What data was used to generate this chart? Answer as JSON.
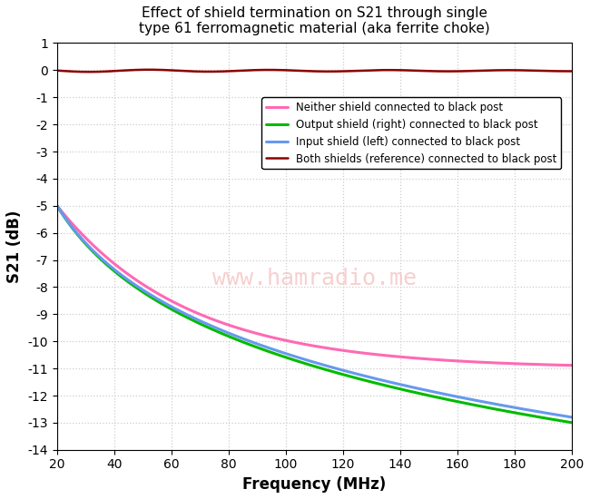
{
  "title": "Effect of shield termination on S21 through single\ntype 61 ferromagnetic material (aka ferrite choke)",
  "xlabel": "Frequency (MHz)",
  "ylabel": "S21 (dB)",
  "xlim": [
    20,
    200
  ],
  "ylim": [
    -14,
    1
  ],
  "yticks": [
    1,
    0,
    -1,
    -2,
    -3,
    -4,
    -5,
    -6,
    -7,
    -8,
    -9,
    -10,
    -11,
    -12,
    -13,
    -14
  ],
  "xticks": [
    20,
    40,
    60,
    80,
    100,
    120,
    140,
    160,
    180,
    200
  ],
  "grid_color": "#cccccc",
  "background_color": "#ffffff",
  "watermark": "www.hamradio.me",
  "watermark_color": "#f5c0c0",
  "lines": [
    {
      "label": "Neither shield connected to black post",
      "color": "#ff69b4",
      "linewidth": 2.2,
      "curve_type": "neither"
    },
    {
      "label": "Output shield (right) connected to black post",
      "color": "#00bb00",
      "linewidth": 2.2,
      "curve_type": "output"
    },
    {
      "label": "Input shield (left) connected to black post",
      "color": "#6699ee",
      "linewidth": 2.2,
      "curve_type": "input"
    },
    {
      "label": "Both shields (reference) connected to black post",
      "color": "#8b0000",
      "linewidth": 1.8,
      "curve_type": "both"
    }
  ]
}
